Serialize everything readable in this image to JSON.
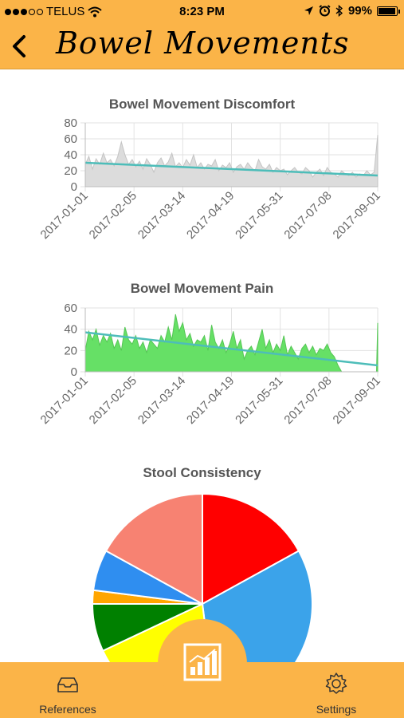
{
  "status_bar": {
    "carrier": "TELUS",
    "time": "8:23 PM",
    "battery": "99%",
    "battery_level": 0.99
  },
  "header": {
    "title": "Bowel Movements"
  },
  "tabs": [
    {
      "label": "References",
      "icon": "inbox-icon"
    },
    {
      "label": "",
      "icon": "report-chart-icon",
      "active": true
    },
    {
      "label": "Settings",
      "icon": "gear-icon"
    }
  ],
  "colors": {
    "accent": "#fbb448",
    "trend": "#4dbdb9",
    "discomfort_fill": "#dcdcdc",
    "pain_fill": "#66e066"
  },
  "chart_data": [
    {
      "type": "area",
      "title": "Bowel Movement Discomfort",
      "x_ticks": [
        "2017-01-01",
        "2017-02-05",
        "2017-03-14",
        "2017-04-19",
        "2017-05-31",
        "2017-07-08",
        "2017-09-01"
      ],
      "y_ticks": [
        0,
        20,
        40,
        60,
        80
      ],
      "ylim": [
        0,
        80
      ],
      "grid": true,
      "series": [
        {
          "kind": "area",
          "points": [
            [
              0,
              28
            ],
            [
              3,
              38
            ],
            [
              6,
              22
            ],
            [
              9,
              35
            ],
            [
              12,
              28
            ],
            [
              15,
              42
            ],
            [
              18,
              30
            ],
            [
              21,
              34
            ],
            [
              24,
              26
            ],
            [
              27,
              38
            ],
            [
              30,
              56
            ],
            [
              33,
              40
            ],
            [
              36,
              28
            ],
            [
              39,
              34
            ],
            [
              42,
              25
            ],
            [
              45,
              32
            ],
            [
              48,
              22
            ],
            [
              51,
              35
            ],
            [
              54,
              28
            ],
            [
              57,
              18
            ],
            [
              60,
              30
            ],
            [
              63,
              36
            ],
            [
              66,
              26
            ],
            [
              69,
              31
            ],
            [
              72,
              42
            ],
            [
              75,
              25
            ],
            [
              78,
              30
            ],
            [
              81,
              24
            ],
            [
              84,
              34
            ],
            [
              87,
              27
            ],
            [
              90,
              40
            ],
            [
              93,
              24
            ],
            [
              96,
              30
            ],
            [
              99,
              22
            ],
            [
              102,
              28
            ],
            [
              105,
              26
            ],
            [
              108,
              34
            ],
            [
              111,
              20
            ],
            [
              114,
              27
            ],
            [
              117,
              24
            ],
            [
              120,
              30
            ],
            [
              123,
              18
            ],
            [
              126,
              25
            ],
            [
              129,
              28
            ],
            [
              132,
              22
            ],
            [
              135,
              30
            ],
            [
              138,
              24
            ],
            [
              141,
              20
            ],
            [
              144,
              34
            ],
            [
              147,
              25
            ],
            [
              150,
              22
            ],
            [
              153,
              28
            ],
            [
              156,
              18
            ],
            [
              159,
              24
            ],
            [
              162,
              20
            ],
            [
              165,
              22
            ],
            [
              168,
              15
            ],
            [
              171,
              20
            ],
            [
              174,
              24
            ],
            [
              177,
              18
            ],
            [
              180,
              16
            ],
            [
              183,
              24
            ],
            [
              186,
              20
            ],
            [
              189,
              12
            ],
            [
              192,
              18
            ],
            [
              195,
              22
            ],
            [
              198,
              14
            ],
            [
              201,
              24
            ],
            [
              204,
              18
            ],
            [
              207,
              16
            ],
            [
              210,
              12
            ],
            [
              213,
              20
            ],
            [
              216,
              16
            ],
            [
              219,
              14
            ],
            [
              222,
              18
            ],
            [
              225,
              12
            ],
            [
              228,
              16
            ],
            [
              231,
              14
            ],
            [
              234,
              20
            ],
            [
              237,
              15
            ],
            [
              240,
              18
            ],
            [
              243,
              65
            ]
          ]
        },
        {
          "kind": "trend",
          "points": [
            [
              0,
              30
            ],
            [
              243,
              14
            ]
          ]
        }
      ]
    },
    {
      "type": "area",
      "title": "Bowel Movement Pain",
      "x_ticks": [
        "2017-01-01",
        "2017-02-05",
        "2017-03-14",
        "2017-04-19",
        "2017-05-31",
        "2017-07-08",
        "2017-09-01"
      ],
      "y_ticks": [
        0,
        20,
        40,
        60
      ],
      "ylim": [
        0,
        60
      ],
      "grid": true,
      "series": [
        {
          "kind": "area",
          "points": [
            [
              0,
              20
            ],
            [
              3,
              38
            ],
            [
              6,
              30
            ],
            [
              9,
              40
            ],
            [
              12,
              25
            ],
            [
              15,
              34
            ],
            [
              18,
              28
            ],
            [
              21,
              36
            ],
            [
              24,
              22
            ],
            [
              27,
              30
            ],
            [
              30,
              20
            ],
            [
              33,
              42
            ],
            [
              36,
              30
            ],
            [
              39,
              26
            ],
            [
              42,
              34
            ],
            [
              45,
              22
            ],
            [
              48,
              28
            ],
            [
              51,
              18
            ],
            [
              54,
              30
            ],
            [
              57,
              26
            ],
            [
              60,
              22
            ],
            [
              63,
              34
            ],
            [
              66,
              28
            ],
            [
              69,
              42
            ],
            [
              72,
              30
            ],
            [
              75,
              54
            ],
            [
              78,
              38
            ],
            [
              81,
              46
            ],
            [
              84,
              30
            ],
            [
              87,
              36
            ],
            [
              90,
              24
            ],
            [
              93,
              30
            ],
            [
              96,
              28
            ],
            [
              99,
              34
            ],
            [
              102,
              20
            ],
            [
              105,
              44
            ],
            [
              108,
              28
            ],
            [
              111,
              22
            ],
            [
              114,
              30
            ],
            [
              117,
              18
            ],
            [
              120,
              26
            ],
            [
              123,
              38
            ],
            [
              126,
              22
            ],
            [
              129,
              30
            ],
            [
              132,
              12
            ],
            [
              135,
              20
            ],
            [
              138,
              24
            ],
            [
              141,
              16
            ],
            [
              144,
              28
            ],
            [
              147,
              40
            ],
            [
              150,
              22
            ],
            [
              153,
              30
            ],
            [
              156,
              18
            ],
            [
              159,
              26
            ],
            [
              162,
              20
            ],
            [
              165,
              34
            ],
            [
              168,
              16
            ],
            [
              171,
              24
            ],
            [
              174,
              18
            ],
            [
              177,
              12
            ],
            [
              180,
              22
            ],
            [
              183,
              26
            ],
            [
              186,
              18
            ],
            [
              189,
              24
            ],
            [
              192,
              16
            ],
            [
              195,
              22
            ],
            [
              198,
              20
            ],
            [
              201,
              26
            ],
            [
              204,
              18
            ],
            [
              207,
              14
            ],
            [
              210,
              6
            ],
            [
              213,
              0
            ],
            [
              216,
              0
            ],
            [
              219,
              0
            ],
            [
              222,
              0
            ],
            [
              225,
              0
            ],
            [
              228,
              0
            ],
            [
              231,
              0
            ],
            [
              234,
              0
            ],
            [
              237,
              0
            ],
            [
              240,
              0
            ],
            [
              242,
              0
            ],
            [
              243,
              46
            ]
          ]
        },
        {
          "kind": "trend",
          "points": [
            [
              0,
              37
            ],
            [
              243,
              6
            ]
          ]
        }
      ]
    },
    {
      "type": "pie",
      "title": "Stool Consistency",
      "slices": [
        {
          "value": 17,
          "color": "#ff0000"
        },
        {
          "value": 31,
          "color": "#3ba3ea"
        },
        {
          "value": 20,
          "color": "#ffff00"
        },
        {
          "value": 7,
          "color": "#008000"
        },
        {
          "value": 2,
          "color": "#ffa500"
        },
        {
          "value": 6,
          "color": "#2f8ef0"
        },
        {
          "value": 17,
          "color": "#f78272"
        }
      ]
    }
  ]
}
